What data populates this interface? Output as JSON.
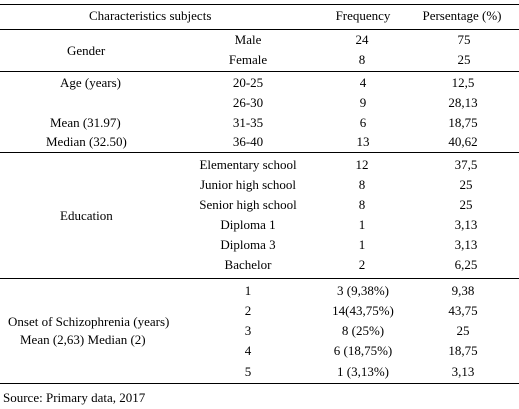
{
  "header": {
    "characteristics": "Characteristics subjects",
    "frequency": "Frequency",
    "percentage": "Persentage (%)"
  },
  "gender": {
    "label": "Gender",
    "rows": [
      {
        "category": "Male",
        "frequency": "24",
        "percentage": "75"
      },
      {
        "category": "Female",
        "frequency": "8",
        "percentage": "25"
      }
    ]
  },
  "age": {
    "label": "Age (years)",
    "mean": "Mean (31.97)",
    "median": "Median (32.50)",
    "rows": [
      {
        "category": "20-25",
        "frequency": "4",
        "percentage": "12,5"
      },
      {
        "category": "26-30",
        "frequency": "9",
        "percentage": "28,13"
      },
      {
        "category": "31-35",
        "frequency": "6",
        "percentage": "18,75"
      },
      {
        "category": "36-40",
        "frequency": "13",
        "percentage": "40,62"
      }
    ]
  },
  "education": {
    "label": "Education",
    "rows": [
      {
        "category": "Elementary school",
        "frequency": "12",
        "percentage": "37,5"
      },
      {
        "category": "Junior high school",
        "frequency": "8",
        "percentage": "25"
      },
      {
        "category": "Senior high school",
        "frequency": "8",
        "percentage": "25"
      },
      {
        "category": "Diploma 1",
        "frequency": "1",
        "percentage": "3,13"
      },
      {
        "category": "Diploma 3",
        "frequency": "1",
        "percentage": "3,13"
      },
      {
        "category": "Bachelor",
        "frequency": "2",
        "percentage": "6,25"
      }
    ]
  },
  "onset": {
    "label": "Onset of Schizophrenia (years)",
    "stats": "Mean (2,63) Median (2)",
    "rows": [
      {
        "category": "1",
        "frequency": "3 (9,38%)",
        "percentage": "9,38"
      },
      {
        "category": "2",
        "frequency": "14(43,75%)",
        "percentage": "43,75"
      },
      {
        "category": "3",
        "frequency": "8 (25%)",
        "percentage": "25"
      },
      {
        "category": "4",
        "frequency": "6 (18,75%)",
        "percentage": "18,75"
      },
      {
        "category": "5",
        "frequency": "1 (3,13%)",
        "percentage": "3,13"
      }
    ]
  },
  "source": "Source: Primary data, 2017"
}
